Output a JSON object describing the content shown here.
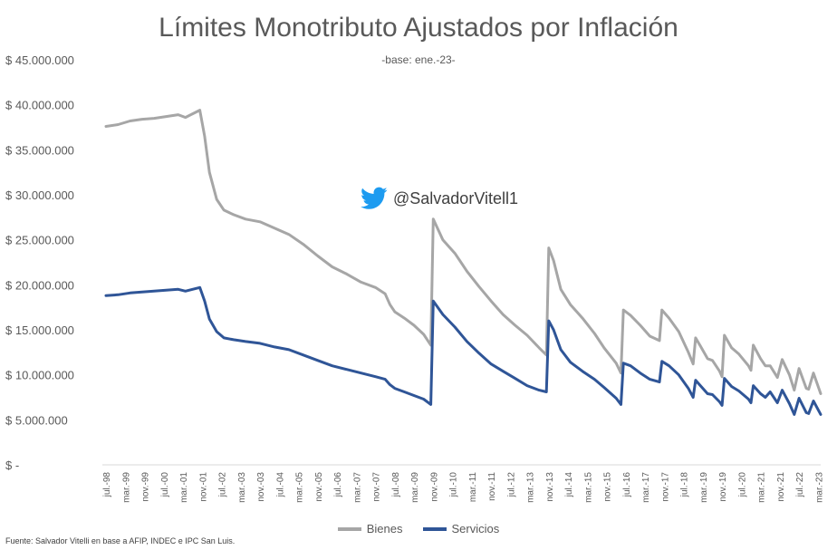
{
  "chart_data": {
    "type": "line",
    "title": "Límites Monotributo Ajustados por Inflación",
    "subtitle": "-base: ene.-23-",
    "source": "Fuente: Salvador Vitelli en base a AFIP, INDEC e IPC San Luis.",
    "watermark": "@SalvadorVitell1",
    "ylim": [
      0,
      45000000
    ],
    "y_ticks": [
      0,
      5000000,
      10000000,
      15000000,
      20000000,
      25000000,
      30000000,
      35000000,
      40000000,
      45000000
    ],
    "y_tick_labels": [
      "$ -",
      "$ 5.000.000",
      "$ 10.000.000",
      "$ 15.000.000",
      "$ 20.000.000",
      "$ 25.000.000",
      "$ 30.000.000",
      "$ 35.000.000",
      "$ 40.000.000",
      "$ 45.000.000"
    ],
    "x_ticks": [
      {
        "t": 0,
        "label": "jul.-98"
      },
      {
        "t": 8,
        "label": "mar.-99"
      },
      {
        "t": 16,
        "label": "nov.-99"
      },
      {
        "t": 24,
        "label": "jul.-00"
      },
      {
        "t": 32,
        "label": "mar.-01"
      },
      {
        "t": 40,
        "label": "nov.-01"
      },
      {
        "t": 48,
        "label": "jul.-02"
      },
      {
        "t": 56,
        "label": "mar.-03"
      },
      {
        "t": 64,
        "label": "nov.-03"
      },
      {
        "t": 72,
        "label": "jul.-04"
      },
      {
        "t": 80,
        "label": "mar.-05"
      },
      {
        "t": 88,
        "label": "nov.-05"
      },
      {
        "t": 96,
        "label": "jul.-06"
      },
      {
        "t": 104,
        "label": "mar.-07"
      },
      {
        "t": 112,
        "label": "nov.-07"
      },
      {
        "t": 120,
        "label": "jul.-08"
      },
      {
        "t": 128,
        "label": "mar.-09"
      },
      {
        "t": 136,
        "label": "nov.-09"
      },
      {
        "t": 144,
        "label": "jul.-10"
      },
      {
        "t": 152,
        "label": "mar.-11"
      },
      {
        "t": 160,
        "label": "nov.-11"
      },
      {
        "t": 168,
        "label": "jul.-12"
      },
      {
        "t": 176,
        "label": "mar.-13"
      },
      {
        "t": 184,
        "label": "nov.-13"
      },
      {
        "t": 192,
        "label": "jul.-14"
      },
      {
        "t": 200,
        "label": "mar.-15"
      },
      {
        "t": 208,
        "label": "nov.-15"
      },
      {
        "t": 216,
        "label": "jul.-16"
      },
      {
        "t": 224,
        "label": "mar.-17"
      },
      {
        "t": 232,
        "label": "nov.-17"
      },
      {
        "t": 240,
        "label": "jul.-18"
      },
      {
        "t": 248,
        "label": "mar.-19"
      },
      {
        "t": 256,
        "label": "nov.-19"
      },
      {
        "t": 264,
        "label": "jul.-20"
      },
      {
        "t": 272,
        "label": "mar.-21"
      },
      {
        "t": 280,
        "label": "nov.-21"
      },
      {
        "t": 288,
        "label": "jul.-22"
      },
      {
        "t": 296,
        "label": "mar.-23"
      }
    ],
    "grid": false,
    "legend_position": "bottom",
    "series": [
      {
        "name": "Bienes",
        "color": "#a6a6a6",
        "points": [
          [
            0,
            37600000
          ],
          [
            5,
            37800000
          ],
          [
            10,
            38200000
          ],
          [
            15,
            38400000
          ],
          [
            20,
            38500000
          ],
          [
            25,
            38700000
          ],
          [
            30,
            38900000
          ],
          [
            33,
            38600000
          ],
          [
            36,
            39000000
          ],
          [
            39,
            39400000
          ],
          [
            41,
            36500000
          ],
          [
            43,
            32500000
          ],
          [
            46,
            29500000
          ],
          [
            49,
            28300000
          ],
          [
            53,
            27800000
          ],
          [
            58,
            27300000
          ],
          [
            64,
            27000000
          ],
          [
            70,
            26300000
          ],
          [
            76,
            25600000
          ],
          [
            82,
            24500000
          ],
          [
            88,
            23200000
          ],
          [
            94,
            22000000
          ],
          [
            100,
            21200000
          ],
          [
            106,
            20300000
          ],
          [
            112,
            19700000
          ],
          [
            116,
            19000000
          ],
          [
            118,
            17800000
          ],
          [
            120,
            17000000
          ],
          [
            124,
            16300000
          ],
          [
            128,
            15500000
          ],
          [
            132,
            14500000
          ],
          [
            135,
            13300000
          ],
          [
            136,
            27300000
          ],
          [
            140,
            25000000
          ],
          [
            145,
            23500000
          ],
          [
            150,
            21500000
          ],
          [
            155,
            19800000
          ],
          [
            160,
            18200000
          ],
          [
            165,
            16700000
          ],
          [
            170,
            15500000
          ],
          [
            175,
            14400000
          ],
          [
            180,
            13000000
          ],
          [
            183,
            12200000
          ],
          [
            184,
            24100000
          ],
          [
            186,
            22700000
          ],
          [
            189,
            19500000
          ],
          [
            193,
            17800000
          ],
          [
            198,
            16300000
          ],
          [
            203,
            14600000
          ],
          [
            207,
            13000000
          ],
          [
            212,
            11300000
          ],
          [
            214,
            10200000
          ],
          [
            215,
            17200000
          ],
          [
            218,
            16600000
          ],
          [
            222,
            15500000
          ],
          [
            226,
            14300000
          ],
          [
            230,
            13800000
          ],
          [
            231,
            17200000
          ],
          [
            234,
            16300000
          ],
          [
            238,
            14800000
          ],
          [
            242,
            12500000
          ],
          [
            244,
            11200000
          ],
          [
            245,
            14100000
          ],
          [
            247,
            13200000
          ],
          [
            250,
            11800000
          ],
          [
            252,
            11600000
          ],
          [
            255,
            10400000
          ],
          [
            256,
            9800000
          ],
          [
            257,
            14400000
          ],
          [
            260,
            13000000
          ],
          [
            263,
            12300000
          ],
          [
            267,
            11000000
          ],
          [
            268,
            10500000
          ],
          [
            269,
            13300000
          ],
          [
            272,
            11800000
          ],
          [
            274,
            11000000
          ],
          [
            276,
            11000000
          ],
          [
            279,
            9700000
          ],
          [
            281,
            11700000
          ],
          [
            284,
            10000000
          ],
          [
            286,
            8300000
          ],
          [
            288,
            10700000
          ],
          [
            291,
            8500000
          ],
          [
            292,
            8400000
          ],
          [
            294,
            10200000
          ],
          [
            297,
            7900000
          ]
        ]
      },
      {
        "name": "Servicios",
        "color": "#2f5597",
        "points": [
          [
            0,
            18800000
          ],
          [
            5,
            18900000
          ],
          [
            10,
            19100000
          ],
          [
            15,
            19200000
          ],
          [
            20,
            19300000
          ],
          [
            25,
            19400000
          ],
          [
            30,
            19500000
          ],
          [
            33,
            19300000
          ],
          [
            36,
            19500000
          ],
          [
            39,
            19700000
          ],
          [
            41,
            18200000
          ],
          [
            43,
            16200000
          ],
          [
            46,
            14800000
          ],
          [
            49,
            14100000
          ],
          [
            53,
            13900000
          ],
          [
            58,
            13700000
          ],
          [
            64,
            13500000
          ],
          [
            70,
            13100000
          ],
          [
            76,
            12800000
          ],
          [
            82,
            12200000
          ],
          [
            88,
            11600000
          ],
          [
            94,
            11000000
          ],
          [
            100,
            10600000
          ],
          [
            106,
            10200000
          ],
          [
            112,
            9800000
          ],
          [
            116,
            9500000
          ],
          [
            118,
            8900000
          ],
          [
            120,
            8500000
          ],
          [
            124,
            8100000
          ],
          [
            128,
            7700000
          ],
          [
            132,
            7300000
          ],
          [
            135,
            6700000
          ],
          [
            136,
            18200000
          ],
          [
            140,
            16700000
          ],
          [
            145,
            15300000
          ],
          [
            150,
            13700000
          ],
          [
            155,
            12400000
          ],
          [
            160,
            11200000
          ],
          [
            165,
            10400000
          ],
          [
            170,
            9600000
          ],
          [
            175,
            8800000
          ],
          [
            180,
            8300000
          ],
          [
            183,
            8100000
          ],
          [
            184,
            16000000
          ],
          [
            186,
            15000000
          ],
          [
            189,
            12800000
          ],
          [
            193,
            11400000
          ],
          [
            198,
            10400000
          ],
          [
            203,
            9500000
          ],
          [
            207,
            8600000
          ],
          [
            212,
            7400000
          ],
          [
            214,
            6700000
          ],
          [
            215,
            11300000
          ],
          [
            218,
            11000000
          ],
          [
            222,
            10200000
          ],
          [
            226,
            9500000
          ],
          [
            230,
            9200000
          ],
          [
            231,
            11500000
          ],
          [
            234,
            11000000
          ],
          [
            238,
            10000000
          ],
          [
            242,
            8500000
          ],
          [
            244,
            7500000
          ],
          [
            245,
            9400000
          ],
          [
            247,
            8800000
          ],
          [
            250,
            7900000
          ],
          [
            252,
            7800000
          ],
          [
            255,
            7000000
          ],
          [
            256,
            6600000
          ],
          [
            257,
            9600000
          ],
          [
            260,
            8700000
          ],
          [
            263,
            8200000
          ],
          [
            267,
            7300000
          ],
          [
            268,
            6900000
          ],
          [
            269,
            8800000
          ],
          [
            272,
            7900000
          ],
          [
            274,
            7500000
          ],
          [
            276,
            8100000
          ],
          [
            279,
            6900000
          ],
          [
            281,
            8300000
          ],
          [
            284,
            6800000
          ],
          [
            286,
            5600000
          ],
          [
            288,
            7400000
          ],
          [
            291,
            5800000
          ],
          [
            292,
            5700000
          ],
          [
            294,
            7100000
          ],
          [
            297,
            5600000
          ]
        ]
      }
    ]
  }
}
